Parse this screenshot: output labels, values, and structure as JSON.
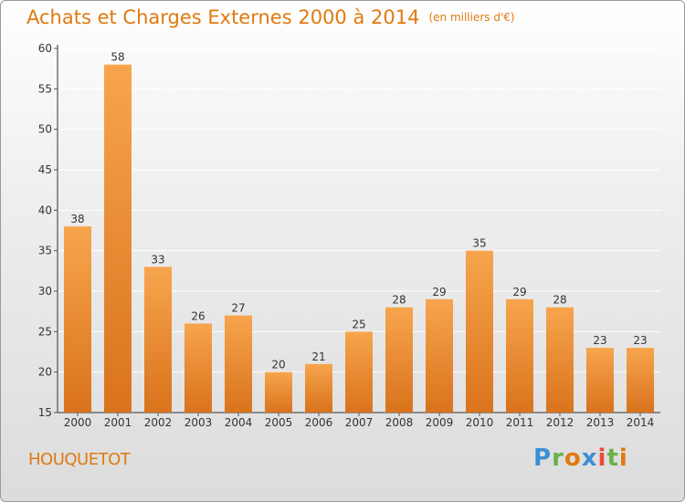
{
  "header": {
    "title": "Achats et Charges Externes 2000 à 2014",
    "unit": "(en milliers d'€)"
  },
  "commune": "HOUQUETOT",
  "logo": {
    "text": "Proxiti"
  },
  "colors": {
    "bar_light": "#f7a54d",
    "bar_dark": "#d9731c",
    "title": "#e07a10"
  },
  "chart_data": {
    "type": "bar",
    "title": "Achats et Charges Externes 2000 à 2014",
    "subtitle": "(en milliers d'€)",
    "categories": [
      "2000",
      "2001",
      "2002",
      "2003",
      "2004",
      "2005",
      "2006",
      "2007",
      "2008",
      "2009",
      "2010",
      "2011",
      "2012",
      "2013",
      "2014"
    ],
    "values": [
      38,
      58,
      33,
      26,
      27,
      20,
      21,
      25,
      28,
      29,
      35,
      29,
      28,
      23,
      23
    ],
    "ylim": [
      15,
      60
    ],
    "yticks": [
      15,
      20,
      25,
      30,
      35,
      40,
      45,
      50,
      55,
      60
    ],
    "grid": true,
    "legend": "none"
  }
}
